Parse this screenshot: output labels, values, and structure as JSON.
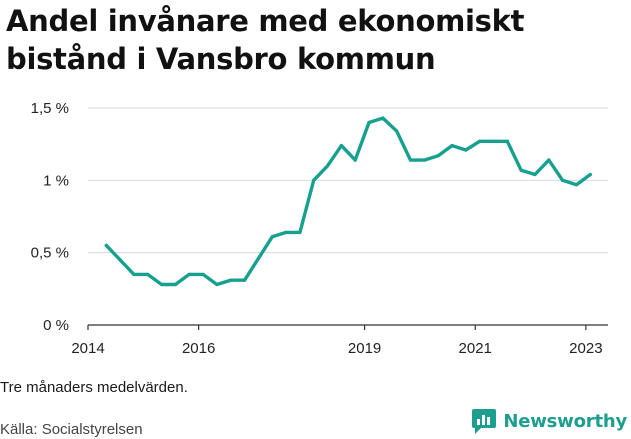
{
  "title": "Andel invånare med ekonomiskt bistånd i Vansbro kommun",
  "note": "Tre månaders medelvärden.",
  "source": "Källa: Socialstyrelsen",
  "brand": "Newsworthy",
  "colors": {
    "line": "#17a090",
    "grid": "#d9d9d9",
    "axis": "#333333",
    "brand": "#1d9e8e"
  },
  "chart_data": {
    "type": "line",
    "title": "Andel invånare med ekonomiskt bistånd i Vansbro kommun",
    "xlabel": "",
    "ylabel": "",
    "ylim": [
      0,
      1.5
    ],
    "xlim": [
      2014,
      2023.4
    ],
    "y_ticks": [
      {
        "value": 0,
        "label": "0 %"
      },
      {
        "value": 0.5,
        "label": "0,5 %"
      },
      {
        "value": 1.0,
        "label": "1 %"
      },
      {
        "value": 1.5,
        "label": "1,5 %"
      }
    ],
    "x_ticks": [
      {
        "value": 2014,
        "label": "2014"
      },
      {
        "value": 2016,
        "label": "2016"
      },
      {
        "value": 2019,
        "label": "2019"
      },
      {
        "value": 2021,
        "label": "2021"
      },
      {
        "value": 2023,
        "label": "2023"
      }
    ],
    "series": [
      {
        "name": "Andel invånare med ekonomiskt bistånd",
        "x": [
          2014.33,
          2014.58,
          2014.83,
          2015.08,
          2015.33,
          2015.58,
          2015.83,
          2016.08,
          2016.33,
          2016.58,
          2016.83,
          2017.08,
          2017.33,
          2017.58,
          2017.83,
          2018.08,
          2018.33,
          2018.58,
          2018.83,
          2019.08,
          2019.33,
          2019.58,
          2019.83,
          2020.08,
          2020.33,
          2020.58,
          2020.83,
          2021.08,
          2021.33,
          2021.58,
          2021.83,
          2022.08,
          2022.33,
          2022.58,
          2022.83,
          2023.08
        ],
        "values": [
          0.55,
          0.45,
          0.35,
          0.35,
          0.28,
          0.28,
          0.35,
          0.35,
          0.28,
          0.31,
          0.31,
          0.46,
          0.61,
          0.64,
          0.64,
          1.0,
          1.1,
          1.24,
          1.14,
          1.4,
          1.43,
          1.34,
          1.14,
          1.14,
          1.17,
          1.24,
          1.21,
          1.27,
          1.27,
          1.27,
          1.07,
          1.04,
          1.14,
          1.0,
          0.97,
          1.04
        ]
      }
    ]
  }
}
